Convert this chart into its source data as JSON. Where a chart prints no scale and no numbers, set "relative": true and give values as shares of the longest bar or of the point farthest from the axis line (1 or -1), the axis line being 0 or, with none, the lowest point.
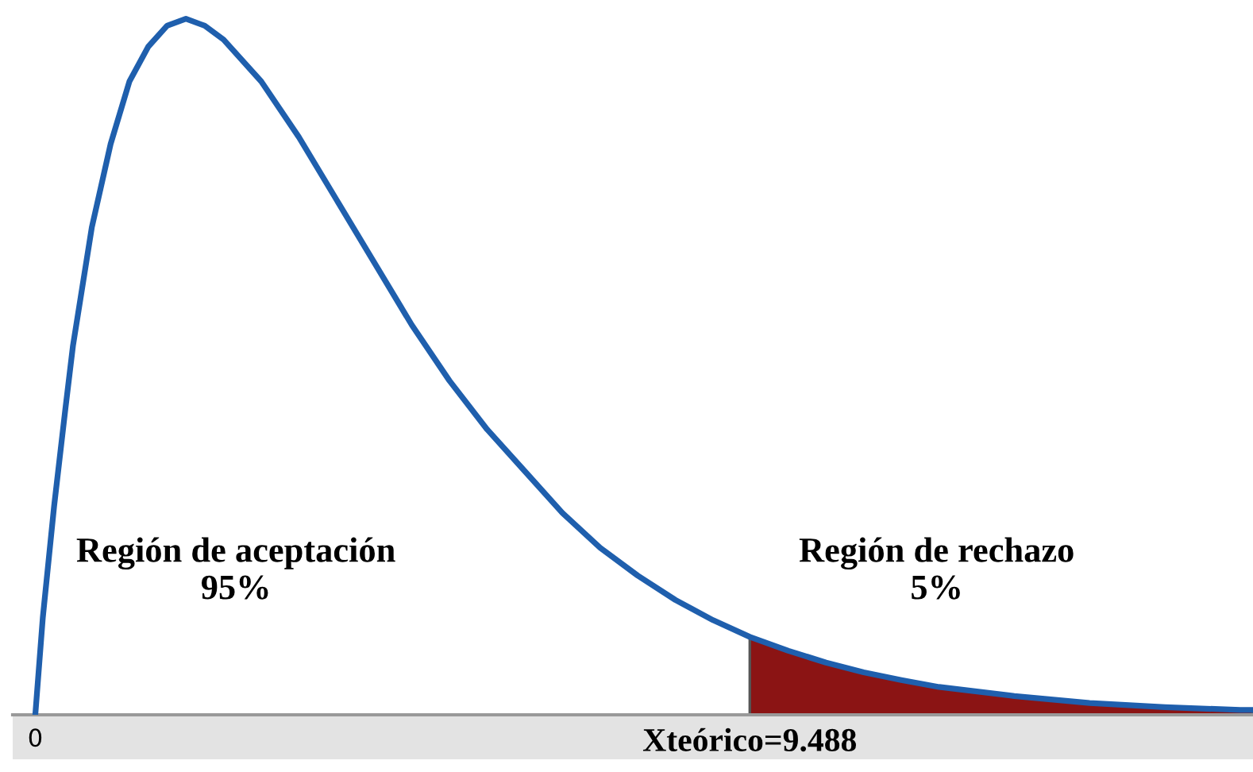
{
  "chart_data": {
    "type": "line",
    "relative": true,
    "xlim": [
      -0.3,
      16.17
    ],
    "xticks": [
      0,
      {
        "value": 9.488,
        "label": "Xteórico=9.488"
      }
    ],
    "annotations": [
      "Región de aceptación\n95%",
      "Región de rechazo\n5%"
    ],
    "series": [
      {
        "color": "#1f5fad",
        "x": [
          0,
          0.1,
          0.25,
          0.4,
          0.5,
          0.75,
          1,
          1.25,
          1.5,
          1.75,
          2,
          2.25,
          2.5,
          3,
          3.5,
          4,
          4.5,
          5,
          5.5,
          6,
          6.5,
          7,
          7.5,
          8,
          8.5,
          9,
          9.488,
          10,
          10.5,
          11,
          11.5,
          12,
          13,
          14,
          15,
          16,
          16.17
        ],
        "values": [
          0,
          0.14,
          0.3,
          0.44,
          0.53,
          0.7,
          0.82,
          0.91,
          0.96,
          0.99,
          1,
          0.99,
          0.97,
          0.91,
          0.83,
          0.74,
          0.65,
          0.56,
          0.48,
          0.41,
          0.35,
          0.29,
          0.24,
          0.2,
          0.165,
          0.136,
          0.112,
          0.092,
          0.075,
          0.061,
          0.05,
          0.04,
          0.027,
          0.017,
          0.011,
          0.007,
          0.007
        ]
      },
      {
        "type": "area",
        "color": "#8b1414",
        "x": [
          9.488,
          10,
          10.5,
          11,
          11.5,
          12,
          13,
          14,
          15,
          16,
          16.17
        ],
        "values": [
          0.112,
          0.092,
          0.075,
          0.061,
          0.05,
          0.04,
          0.027,
          0.017,
          0.011,
          0.007,
          0.007
        ]
      }
    ]
  }
}
